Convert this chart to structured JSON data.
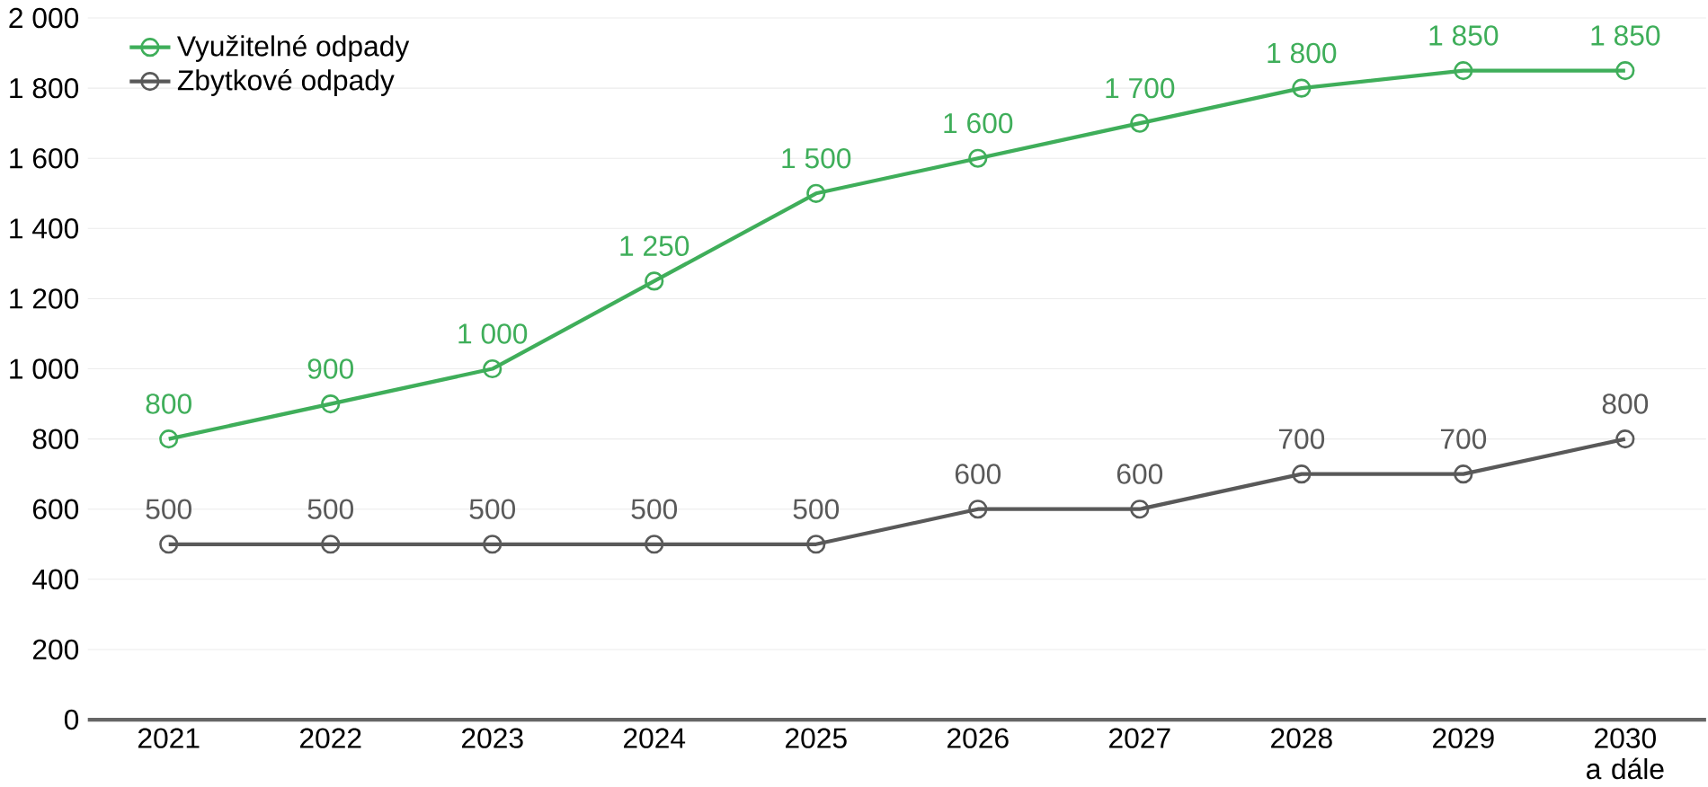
{
  "chart_data": {
    "type": "line",
    "categories": [
      "2021",
      "2022",
      "2023",
      "2024",
      "2025",
      "2026",
      "2027",
      "2028",
      "2029",
      "2030 a dále"
    ],
    "series": [
      {
        "name": "Využitelné odpady",
        "color": "#3fae5a",
        "values": [
          800,
          900,
          1000,
          1250,
          1500,
          1600,
          1700,
          1800,
          1850,
          1850
        ],
        "value_labels": [
          "800",
          "900",
          "1 000",
          "1 250",
          "1 500",
          "1 600",
          "1 700",
          "1 800",
          "1 850",
          "1 850"
        ]
      },
      {
        "name": "Zbytkové odpady",
        "color": "#595959",
        "values": [
          500,
          500,
          500,
          500,
          500,
          600,
          600,
          700,
          700,
          800
        ],
        "value_labels": [
          "500",
          "500",
          "500",
          "500",
          "500",
          "600",
          "600",
          "700",
          "700",
          "800"
        ]
      }
    ],
    "ylim": [
      0,
      2000
    ],
    "yticks": [
      {
        "value": 0,
        "label": "0"
      },
      {
        "value": 200,
        "label": "200"
      },
      {
        "value": 400,
        "label": "400"
      },
      {
        "value": 600,
        "label": "600"
      },
      {
        "value": 800,
        "label": "800"
      },
      {
        "value": 1000,
        "label": "1 000"
      },
      {
        "value": 1200,
        "label": "1 200"
      },
      {
        "value": 1400,
        "label": "1 400"
      },
      {
        "value": 1600,
        "label": "1 600"
      },
      {
        "value": 1800,
        "label": "1 800"
      },
      {
        "value": 2000,
        "label": "2 000"
      }
    ],
    "grid": "y",
    "legend": "top left",
    "marker": "circle",
    "line_style": "solid"
  }
}
